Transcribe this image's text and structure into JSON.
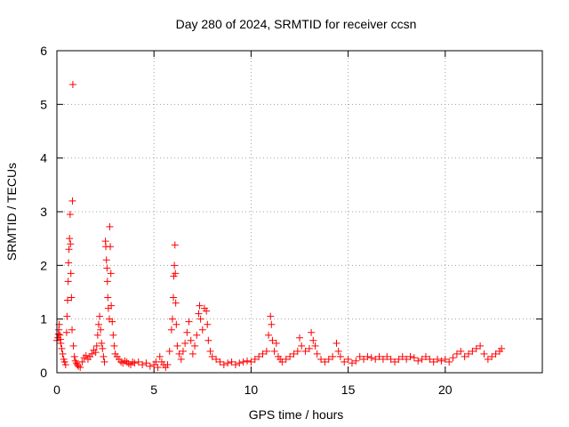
{
  "chart_data": {
    "type": "scatter",
    "title": "Day 280 of 2024, SRMTID for receiver ccsn",
    "xlabel": "GPS time / hours",
    "ylabel": "SRMTID / TECUs",
    "xlim": [
      0,
      25
    ],
    "ylim": [
      0,
      6
    ],
    "xticks": [
      0,
      5,
      10,
      15,
      20
    ],
    "yticks": [
      0,
      1,
      2,
      3,
      4,
      5,
      6
    ],
    "grid": true,
    "marker": "+",
    "color": "#ff0000",
    "series": [
      {
        "name": "SRMTID",
        "points": [
          [
            0.0,
            0.6
          ],
          [
            0.05,
            0.65
          ],
          [
            0.08,
            0.72
          ],
          [
            0.1,
            0.8
          ],
          [
            0.12,
            0.9
          ],
          [
            0.15,
            0.7
          ],
          [
            0.18,
            0.62
          ],
          [
            0.2,
            0.55
          ],
          [
            0.25,
            0.45
          ],
          [
            0.3,
            0.35
          ],
          [
            0.35,
            0.25
          ],
          [
            0.4,
            0.2
          ],
          [
            0.45,
            0.15
          ],
          [
            0.5,
            0.75
          ],
          [
            0.52,
            1.05
          ],
          [
            0.55,
            1.35
          ],
          [
            0.58,
            1.7
          ],
          [
            0.6,
            2.05
          ],
          [
            0.62,
            2.3
          ],
          [
            0.65,
            2.5
          ],
          [
            0.68,
            2.95
          ],
          [
            0.7,
            2.4
          ],
          [
            0.72,
            1.85
          ],
          [
            0.75,
            1.4
          ],
          [
            0.78,
            0.8
          ],
          [
            0.8,
            3.2
          ],
          [
            0.82,
            5.37
          ],
          [
            0.85,
            0.5
          ],
          [
            0.9,
            0.3
          ],
          [
            0.95,
            0.22
          ],
          [
            1.0,
            0.18
          ],
          [
            1.05,
            0.15
          ],
          [
            1.1,
            0.12
          ],
          [
            1.2,
            0.1
          ],
          [
            1.3,
            0.2
          ],
          [
            1.4,
            0.28
          ],
          [
            1.5,
            0.32
          ],
          [
            1.6,
            0.25
          ],
          [
            1.7,
            0.3
          ],
          [
            1.8,
            0.35
          ],
          [
            1.9,
            0.42
          ],
          [
            2.0,
            0.38
          ],
          [
            2.05,
            0.5
          ],
          [
            2.1,
            0.7
          ],
          [
            2.15,
            0.9
          ],
          [
            2.2,
            1.05
          ],
          [
            2.25,
            0.8
          ],
          [
            2.3,
            0.55
          ],
          [
            2.35,
            0.45
          ],
          [
            2.4,
            0.3
          ],
          [
            2.45,
            0.2
          ],
          [
            2.5,
            2.45
          ],
          [
            2.52,
            2.35
          ],
          [
            2.55,
            2.1
          ],
          [
            2.58,
            1.95
          ],
          [
            2.6,
            1.7
          ],
          [
            2.62,
            1.4
          ],
          [
            2.65,
            1.2
          ],
          [
            2.7,
            1.0
          ],
          [
            2.72,
            2.72
          ],
          [
            2.75,
            2.35
          ],
          [
            2.78,
            1.85
          ],
          [
            2.8,
            1.25
          ],
          [
            2.85,
            0.95
          ],
          [
            2.9,
            0.7
          ],
          [
            2.95,
            0.5
          ],
          [
            3.0,
            0.35
          ],
          [
            3.1,
            0.3
          ],
          [
            3.2,
            0.25
          ],
          [
            3.3,
            0.2
          ],
          [
            3.4,
            0.18
          ],
          [
            3.5,
            0.22
          ],
          [
            3.6,
            0.2
          ],
          [
            3.7,
            0.17
          ],
          [
            3.8,
            0.15
          ],
          [
            3.9,
            0.2
          ],
          [
            4.0,
            0.18
          ],
          [
            4.2,
            0.2
          ],
          [
            4.4,
            0.15
          ],
          [
            4.6,
            0.18
          ],
          [
            4.8,
            0.12
          ],
          [
            5.0,
            0.15
          ],
          [
            5.1,
            0.2
          ],
          [
            5.2,
            0.1
          ],
          [
            5.3,
            0.3
          ],
          [
            5.4,
            0.2
          ],
          [
            5.5,
            0.15
          ],
          [
            5.6,
            0.1
          ],
          [
            5.7,
            0.15
          ],
          [
            5.8,
            0.4
          ],
          [
            5.9,
            0.8
          ],
          [
            5.95,
            1.0
          ],
          [
            6.0,
            1.4
          ],
          [
            6.02,
            1.8
          ],
          [
            6.05,
            2.0
          ],
          [
            6.08,
            2.38
          ],
          [
            6.1,
            1.85
          ],
          [
            6.12,
            1.3
          ],
          [
            6.15,
            0.9
          ],
          [
            6.2,
            0.5
          ],
          [
            6.3,
            0.35
          ],
          [
            6.4,
            0.25
          ],
          [
            6.5,
            0.4
          ],
          [
            6.6,
            0.55
          ],
          [
            6.7,
            0.75
          ],
          [
            6.8,
            0.95
          ],
          [
            6.9,
            0.6
          ],
          [
            7.0,
            0.35
          ],
          [
            7.1,
            0.5
          ],
          [
            7.2,
            0.7
          ],
          [
            7.3,
            1.1
          ],
          [
            7.35,
            1.25
          ],
          [
            7.4,
            1.0
          ],
          [
            7.5,
            0.8
          ],
          [
            7.6,
            1.2
          ],
          [
            7.7,
            1.15
          ],
          [
            7.75,
            0.9
          ],
          [
            7.8,
            0.6
          ],
          [
            7.9,
            0.4
          ],
          [
            8.0,
            0.3
          ],
          [
            8.2,
            0.25
          ],
          [
            8.4,
            0.2
          ],
          [
            8.6,
            0.15
          ],
          [
            8.8,
            0.18
          ],
          [
            9.0,
            0.2
          ],
          [
            9.2,
            0.15
          ],
          [
            9.4,
            0.18
          ],
          [
            9.6,
            0.2
          ],
          [
            9.8,
            0.22
          ],
          [
            10.0,
            0.2
          ],
          [
            10.2,
            0.25
          ],
          [
            10.4,
            0.3
          ],
          [
            10.6,
            0.35
          ],
          [
            10.8,
            0.4
          ],
          [
            10.9,
            0.7
          ],
          [
            11.0,
            1.05
          ],
          [
            11.05,
            0.9
          ],
          [
            11.1,
            0.6
          ],
          [
            11.2,
            0.4
          ],
          [
            11.3,
            0.55
          ],
          [
            11.4,
            0.3
          ],
          [
            11.5,
            0.25
          ],
          [
            11.6,
            0.2
          ],
          [
            11.8,
            0.25
          ],
          [
            12.0,
            0.3
          ],
          [
            12.2,
            0.35
          ],
          [
            12.4,
            0.4
          ],
          [
            12.5,
            0.65
          ],
          [
            12.6,
            0.5
          ],
          [
            12.8,
            0.4
          ],
          [
            13.0,
            0.45
          ],
          [
            13.1,
            0.75
          ],
          [
            13.2,
            0.6
          ],
          [
            13.3,
            0.5
          ],
          [
            13.4,
            0.35
          ],
          [
            13.6,
            0.25
          ],
          [
            13.8,
            0.2
          ],
          [
            14.0,
            0.25
          ],
          [
            14.2,
            0.3
          ],
          [
            14.4,
            0.55
          ],
          [
            14.5,
            0.4
          ],
          [
            14.6,
            0.3
          ],
          [
            14.8,
            0.2
          ],
          [
            15.0,
            0.25
          ],
          [
            15.2,
            0.18
          ],
          [
            15.4,
            0.22
          ],
          [
            15.6,
            0.3
          ],
          [
            15.8,
            0.25
          ],
          [
            16.0,
            0.3
          ],
          [
            16.2,
            0.28
          ],
          [
            16.4,
            0.25
          ],
          [
            16.6,
            0.3
          ],
          [
            16.8,
            0.25
          ],
          [
            17.0,
            0.3
          ],
          [
            17.2,
            0.25
          ],
          [
            17.4,
            0.2
          ],
          [
            17.6,
            0.25
          ],
          [
            17.8,
            0.3
          ],
          [
            18.0,
            0.25
          ],
          [
            18.2,
            0.3
          ],
          [
            18.4,
            0.28
          ],
          [
            18.6,
            0.22
          ],
          [
            18.8,
            0.25
          ],
          [
            19.0,
            0.3
          ],
          [
            19.2,
            0.25
          ],
          [
            19.4,
            0.2
          ],
          [
            19.6,
            0.25
          ],
          [
            19.8,
            0.22
          ],
          [
            20.0,
            0.25
          ],
          [
            20.2,
            0.2
          ],
          [
            20.4,
            0.28
          ],
          [
            20.6,
            0.35
          ],
          [
            20.8,
            0.4
          ],
          [
            21.0,
            0.3
          ],
          [
            21.2,
            0.35
          ],
          [
            21.4,
            0.4
          ],
          [
            21.6,
            0.45
          ],
          [
            21.8,
            0.5
          ],
          [
            22.0,
            0.35
          ],
          [
            22.2,
            0.25
          ],
          [
            22.4,
            0.3
          ],
          [
            22.6,
            0.35
          ],
          [
            22.8,
            0.4
          ],
          [
            22.9,
            0.45
          ]
        ]
      }
    ]
  }
}
